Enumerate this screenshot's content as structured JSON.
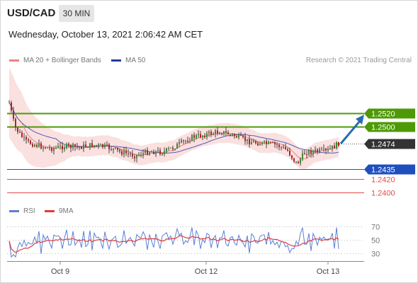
{
  "header": {
    "pair": "USD/CAD",
    "timeframe": "30 MIN"
  },
  "timestamp": "Wednesday, October 13, 2021 2:06:42 AM CET",
  "legend": {
    "ma20": "MA 20 + Bollinger Bands",
    "ma50": "MA 50",
    "credit": "Research © 2021 Trading Central"
  },
  "rsi_legend": {
    "rsi": "RSI",
    "ma9": "9MA"
  },
  "colors": {
    "green": "#4e9a06",
    "blue": "#1f4fbf",
    "red": "#e34a4a",
    "arrow": "#2a6bb0",
    "current_bg": "#333333",
    "bollinger_fill": "#fbe0e0",
    "ma20": "#f08080",
    "ma50": "#4a5fb0",
    "rsi_line": "#5b7fd6",
    "rsi_ma": "#e23a3a"
  },
  "chart_data": {
    "type": "candlestick",
    "x_ticks": [
      "Oct 9",
      "Oct 12",
      "Oct 13"
    ],
    "levels": [
      {
        "value": 1.252,
        "label": "1.2520",
        "style": "green-tag"
      },
      {
        "value": 1.25,
        "label": "1.2500",
        "style": "green-tag"
      },
      {
        "value": 1.2474,
        "label": "1.2474",
        "style": "current-tag"
      },
      {
        "value": 1.2435,
        "label": "1.2435",
        "style": "blue-tag"
      },
      {
        "value": 1.242,
        "label": "1.2420",
        "style": "red-text"
      },
      {
        "value": 1.24,
        "label": "1.2400",
        "style": "red-text"
      }
    ],
    "price_range": [
      1.24,
      1.252
    ],
    "rsi": {
      "ticks": [
        70,
        50,
        30
      ],
      "range": [
        20,
        80
      ]
    }
  }
}
